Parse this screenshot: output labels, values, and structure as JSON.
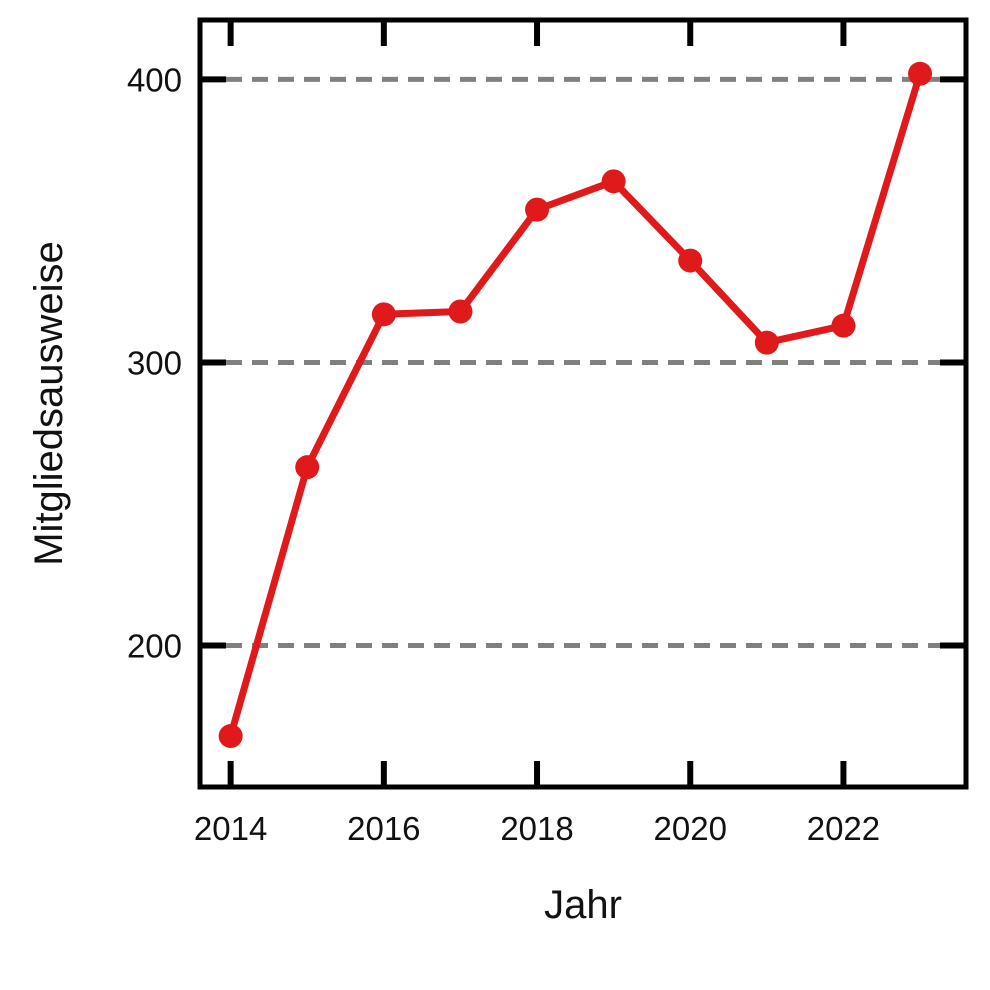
{
  "chart_data": {
    "type": "line",
    "title": "",
    "xlabel": "Jahr",
    "ylabel": "Mitgliedsausweise",
    "x": [
      2014,
      2015,
      2016,
      2017,
      2018,
      2019,
      2020,
      2021,
      2022,
      2023
    ],
    "series": [
      {
        "name": "",
        "values": [
          168,
          263,
          317,
          318,
          354,
          364,
          336,
          307,
          313,
          402
        ]
      }
    ],
    "xlim": [
      2013.6,
      2023.6
    ],
    "ylim": [
      150,
      421
    ],
    "xticks": [
      2014,
      2016,
      2018,
      2020,
      2022
    ],
    "yticks": [
      200,
      300,
      400
    ],
    "grid": "horizontal dashed",
    "colors": {
      "line": "#e0191b",
      "grid": "#808080",
      "axis": "#000000"
    }
  }
}
